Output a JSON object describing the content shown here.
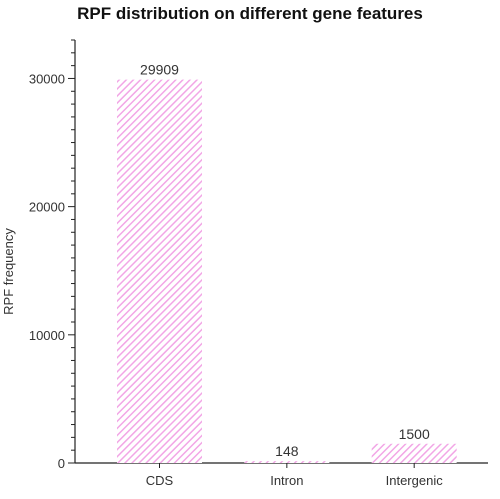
{
  "chart_data": {
    "type": "bar",
    "title": "RPF distribution on different gene features",
    "xlabel": "",
    "ylabel": "RPF frequency",
    "categories": [
      "CDS",
      "Intron",
      "Intergenic"
    ],
    "values": [
      29909,
      148,
      1500
    ],
    "data_labels": [
      "29909",
      "148",
      "1500"
    ],
    "ylim": [
      0,
      33000
    ],
    "yticks": [
      0,
      10000,
      20000,
      30000
    ],
    "ytick_labels": [
      "0",
      "10000",
      "20000",
      "30000"
    ],
    "bar_color": "#f2a6e6",
    "bar_fill": "diagonal-hatch",
    "grid": false,
    "legend": "none"
  }
}
